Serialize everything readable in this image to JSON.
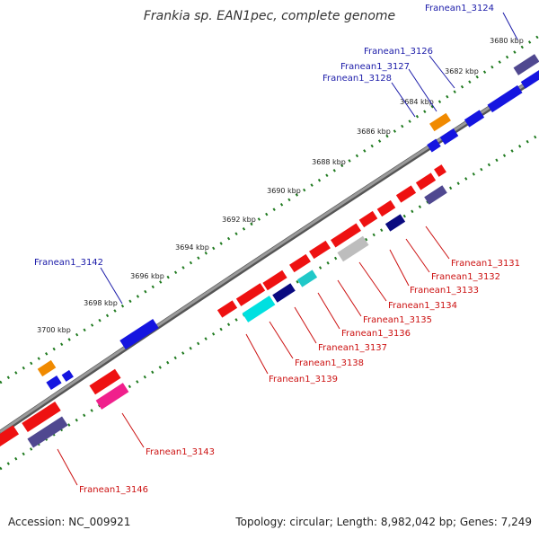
{
  "title": "Frankia sp. EAN1pec, complete genome",
  "footer": {
    "accession": "Accession: NC_009921",
    "summary": "Topology: circular; Length: 8,982,042 bp; Genes: 7,249"
  },
  "colors": {
    "backbone": "#808080",
    "tick_dots": "#1f7a1f",
    "forward_label": "#1a1aa8",
    "reverse_label": "#cc1111",
    "gene_red": "#ee1111",
    "gene_blue": "#1515e0",
    "gene_orange": "#f08a00",
    "gene_navy": "#0a0a80",
    "gene_slate": "#504890",
    "gene_cyan": "#00e0e0",
    "gene_teal": "#20c8c8",
    "gene_gray": "#bdbdbd",
    "gene_pink": "#f0208c"
  },
  "kbp_ticks": [
    "3680 kbp",
    "3682 kbp",
    "3684 kbp",
    "3686 kbp",
    "3688 kbp",
    "3690 kbp",
    "3692 kbp",
    "3694 kbp",
    "3696 kbp",
    "3698 kbp",
    "3700 kbp"
  ],
  "forward_labels": [
    "Franean1_3124",
    "Franean1_3126",
    "Franean1_3127",
    "Franean1_3128",
    "Franean1_3142"
  ],
  "reverse_labels": [
    "Franean1_3131",
    "Franean1_3132",
    "Franean1_3133",
    "Franean1_3134",
    "Franean1_3135",
    "Franean1_3136",
    "Franean1_3137",
    "Franean1_3138",
    "Franean1_3139",
    "Franean1_3143",
    "Franean1_3146"
  ]
}
